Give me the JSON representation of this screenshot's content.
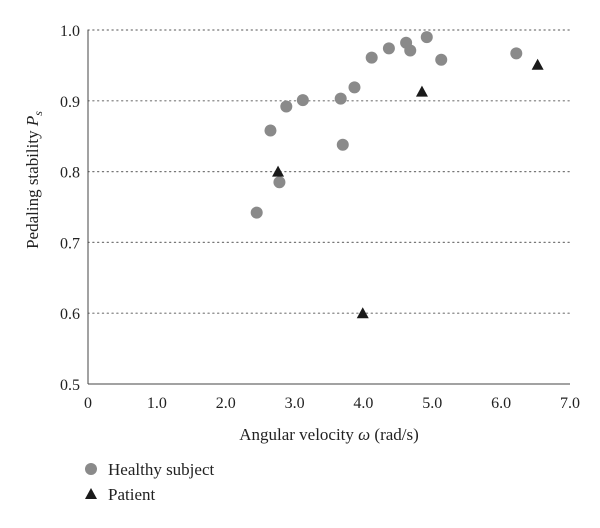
{
  "chart_data": {
    "type": "scatter",
    "title": "",
    "xlabel_prefix": "Angular velocity ",
    "xlabel_symbol": "ω",
    "xlabel_suffix": " (rad/s)",
    "ylabel_main": "Pedaling stability ",
    "ylabel_symbol": "P",
    "ylabel_subscript": "s",
    "xlim": [
      0,
      7.0
    ],
    "ylim": [
      0.5,
      1.0
    ],
    "x_ticks": [
      "0",
      "1.0",
      "2.0",
      "3.0",
      "4.0",
      "5.0",
      "6.0",
      "7.0"
    ],
    "y_ticks": [
      "0.5",
      "0.6",
      "0.7",
      "0.8",
      "0.9",
      "1.0"
    ],
    "grid": "horizontal dotted",
    "legend_position": "bottom-left",
    "series": [
      {
        "name": "Healthy subject",
        "marker": "circle",
        "color": "#8a8a8a",
        "points": [
          {
            "x": 2.45,
            "y": 0.742
          },
          {
            "x": 2.65,
            "y": 0.858
          },
          {
            "x": 2.78,
            "y": 0.785
          },
          {
            "x": 2.88,
            "y": 0.892
          },
          {
            "x": 3.12,
            "y": 0.901
          },
          {
            "x": 3.67,
            "y": 0.903
          },
          {
            "x": 3.7,
            "y": 0.838
          },
          {
            "x": 3.87,
            "y": 0.919
          },
          {
            "x": 4.12,
            "y": 0.961
          },
          {
            "x": 4.37,
            "y": 0.974
          },
          {
            "x": 4.62,
            "y": 0.982
          },
          {
            "x": 4.68,
            "y": 0.971
          },
          {
            "x": 4.92,
            "y": 0.99
          },
          {
            "x": 5.13,
            "y": 0.958
          },
          {
            "x": 6.22,
            "y": 0.967
          }
        ]
      },
      {
        "name": "Patient",
        "marker": "triangle",
        "color": "#1a1a1a",
        "points": [
          {
            "x": 2.76,
            "y": 0.8
          },
          {
            "x": 3.99,
            "y": 0.6
          },
          {
            "x": 4.85,
            "y": 0.913
          },
          {
            "x": 6.53,
            "y": 0.951
          }
        ]
      }
    ]
  }
}
